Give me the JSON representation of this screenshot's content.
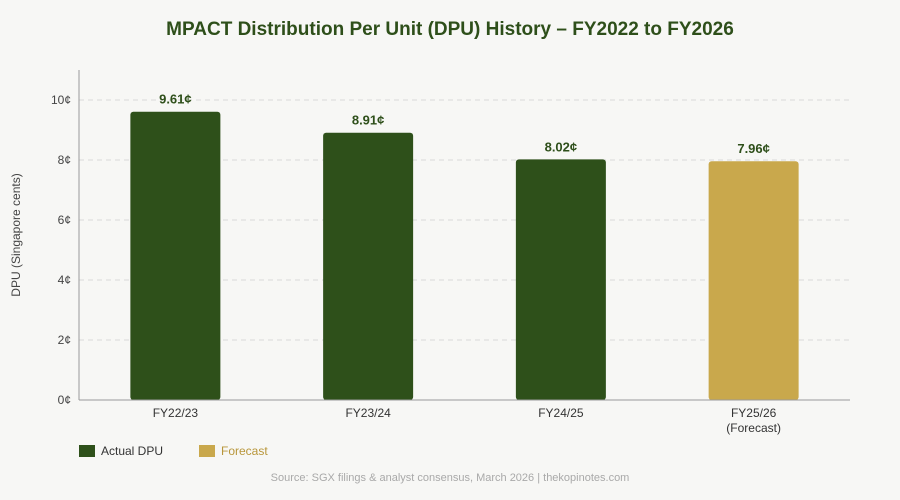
{
  "chart_data": {
    "type": "bar",
    "title": "MPACT Distribution Per Unit (DPU) History – FY2022 to FY2026",
    "ylabel": "DPU (Singapore cents)",
    "xlabel": "",
    "ylim": [
      0,
      10
    ],
    "yticks": [
      "0¢",
      "2¢",
      "4¢",
      "6¢",
      "8¢",
      "10¢"
    ],
    "yticks_values": [
      0,
      2,
      4,
      6,
      8,
      10
    ],
    "grid": true,
    "categories": [
      [
        "FY22/23"
      ],
      [
        "FY23/24"
      ],
      [
        "FY24/25"
      ],
      [
        "FY25/26",
        "(Forecast)"
      ]
    ],
    "values": [
      9.61,
      8.91,
      8.02,
      7.96
    ],
    "data_labels": [
      "9.61¢",
      "8.91¢",
      "8.02¢",
      "7.96¢"
    ],
    "bar_kind": [
      "actual",
      "actual",
      "actual",
      "forecast"
    ],
    "colors": {
      "actual": "#2e501a",
      "forecast": "#c9a84c",
      "title": "#2e4f1a"
    },
    "legend": {
      "position": "bottom-left",
      "items": [
        {
          "label": "Actual DPU",
          "kind": "actual"
        },
        {
          "label": "Forecast",
          "kind": "forecast"
        }
      ]
    },
    "source": "Source: SGX filings & analyst consensus, March 2026 | thekopinotes.com"
  }
}
